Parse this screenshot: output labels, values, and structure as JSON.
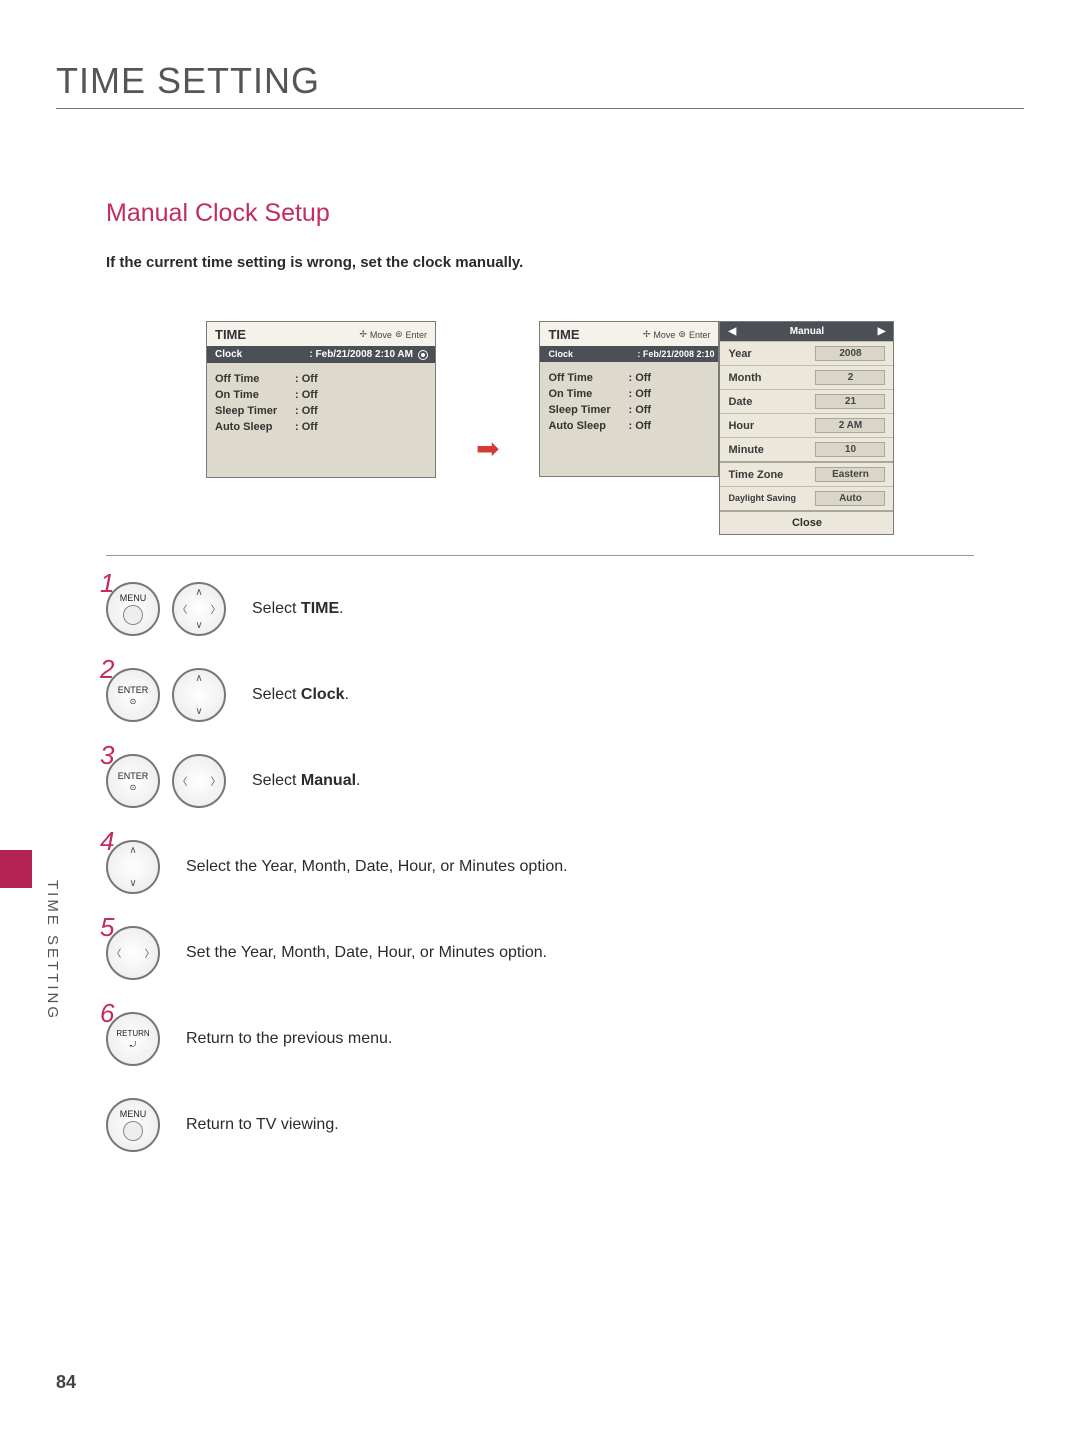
{
  "main_title": "TIME SETTING",
  "section_title": "Manual Clock Setup",
  "intro": "If the current time setting is wrong, set the clock manually.",
  "side_tab": "TIME SETTING",
  "page_number": "84",
  "menu_header": {
    "title": "TIME",
    "hint_move": "Move",
    "hint_enter": "Enter"
  },
  "menu1": {
    "selected": {
      "k": "Clock",
      "v": ": Feb/21/2008 2:10 AM"
    },
    "rows": [
      {
        "k": "Off Time",
        "v": ": Off"
      },
      {
        "k": "On Time",
        "v": ": Off"
      },
      {
        "k": "Sleep Timer",
        "v": ": Off"
      },
      {
        "k": "Auto Sleep",
        "v": ": Off"
      }
    ]
  },
  "menu2": {
    "selected": {
      "k": "Clock",
      "v": ": Feb/21/2008 2:10"
    },
    "rows": [
      {
        "k": "Off Time",
        "v": ": Off"
      },
      {
        "k": "On Time",
        "v": ": Off"
      },
      {
        "k": "Sleep Timer",
        "v": ": Off"
      },
      {
        "k": "Auto Sleep",
        "v": ": Off"
      }
    ]
  },
  "panel": {
    "head": "Manual",
    "rows": [
      {
        "lbl": "Year",
        "val": "2008"
      },
      {
        "lbl": "Month",
        "val": "2"
      },
      {
        "lbl": "Date",
        "val": "21"
      },
      {
        "lbl": "Hour",
        "val": "2 AM"
      },
      {
        "lbl": "Minute",
        "val": "10"
      }
    ],
    "rows2": [
      {
        "lbl": "Time Zone",
        "val": "Eastern"
      },
      {
        "lbl": "Daylight Saving",
        "val": "Auto"
      }
    ],
    "close": "Close"
  },
  "steps": {
    "s1": {
      "n": "1",
      "btn": "MENU",
      "text_a": "Select ",
      "bold": "TIME",
      "text_b": "."
    },
    "s2": {
      "n": "2",
      "btn": "ENTER",
      "text_a": "Select ",
      "bold": "Clock",
      "text_b": "."
    },
    "s3": {
      "n": "3",
      "btn": "ENTER",
      "text_a": "Select ",
      "bold": "Manual",
      "text_b": "."
    },
    "s4": {
      "n": "4",
      "text": "Select the Year, Month, Date, Hour, or Minutes option."
    },
    "s5": {
      "n": "5",
      "text": "Set the Year, Month, Date, Hour, or Minutes option."
    },
    "s6": {
      "n": "6",
      "btn": "RETURN",
      "text": "Return to the previous menu."
    },
    "s7": {
      "btn": "MENU",
      "text": "Return to TV viewing."
    }
  }
}
